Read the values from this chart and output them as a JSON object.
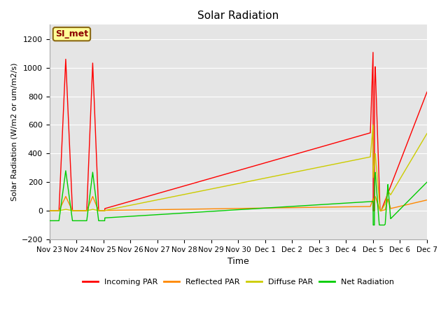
{
  "title": "Solar Radiation",
  "ylabel": "Solar Radiation (W/m2 or um/m2/s)",
  "xlabel": "Time",
  "ylim": [
    -200,
    1300
  ],
  "yticks": [
    -200,
    0,
    200,
    400,
    600,
    800,
    1000,
    1200
  ],
  "x_labels": [
    "Nov 23",
    "Nov 24",
    "Nov 25",
    "Nov 26",
    "Nov 27",
    "Nov 28",
    "Nov 29",
    "Nov 30",
    "Dec 1",
    "Dec 2",
    "Dec 3",
    "Dec 4",
    "Dec 5",
    "Dec 6",
    "Dec 7"
  ],
  "background_color": "#ffffff",
  "plot_bg_color": "#e5e5e5",
  "grid_color": "#ffffff",
  "annotation_label": "SI_met",
  "annotation_color": "#8B0000",
  "annotation_bg": "#ffff99",
  "annotation_border": "#8B6914",
  "colors": {
    "incoming": "#ff0000",
    "reflected": "#ff8800",
    "diffuse": "#cccc00",
    "net": "#00cc00"
  },
  "legend_labels": [
    "Incoming PAR",
    "Reflected PAR",
    "Diffuse PAR",
    "Net Radiation"
  ]
}
